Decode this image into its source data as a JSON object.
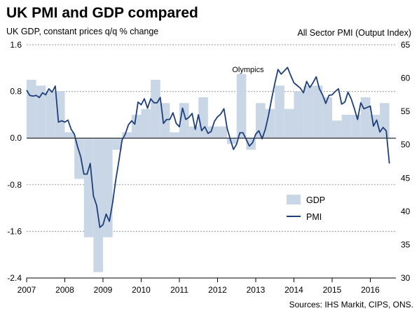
{
  "chart_data": {
    "type": "bar+line",
    "title": "UK PMI and GDP compared",
    "left_axis_label": "UK GDP, constant prices q/q % change",
    "right_axis_label": "All Sector PMI (Output Index)",
    "source": "Sources: IHS Markit, CIPS, ONS.",
    "annotation": "Olympics",
    "left_ylim": [
      -2.4,
      1.6
    ],
    "left_ticks": [
      "1.6",
      "0.8",
      "0.0",
      "-0.8",
      "-1.6",
      "-2.4"
    ],
    "right_ylim": [
      30,
      65
    ],
    "right_ticks": [
      "65",
      "60",
      "55",
      "50",
      "45",
      "40",
      "35",
      "30"
    ],
    "x_tick_labels": [
      "2007",
      "2008",
      "2009",
      "2010",
      "2011",
      "2012",
      "2013",
      "2014",
      "2015",
      "2016"
    ],
    "x_start_year": 2007,
    "x_end_year": 2016.67,
    "legend": {
      "gdp_label": "GDP",
      "pmi_label": "PMI"
    },
    "colors": {
      "gdp": "#c8d6e5",
      "pmi": "#1f3f7a",
      "grid": "#9a9a9a",
      "axis": "#000000"
    },
    "gdp": [
      {
        "quarter": "2007 Q1",
        "value": 1.0
      },
      {
        "quarter": "2007 Q2",
        "value": 0.9
      },
      {
        "quarter": "2007 Q3",
        "value": 0.8
      },
      {
        "quarter": "2007 Q4",
        "value": 0.8
      },
      {
        "quarter": "2008 Q1",
        "value": 0.1
      },
      {
        "quarter": "2008 Q2",
        "value": -0.7
      },
      {
        "quarter": "2008 Q3",
        "value": -1.7
      },
      {
        "quarter": "2008 Q4",
        "value": -2.3
      },
      {
        "quarter": "2009 Q1",
        "value": -1.7
      },
      {
        "quarter": "2009 Q2",
        "value": -0.2
      },
      {
        "quarter": "2009 Q3",
        "value": 0.1
      },
      {
        "quarter": "2009 Q4",
        "value": 0.4
      },
      {
        "quarter": "2010 Q1",
        "value": 0.5
      },
      {
        "quarter": "2010 Q2",
        "value": 1.0
      },
      {
        "quarter": "2010 Q3",
        "value": 0.6
      },
      {
        "quarter": "2010 Q4",
        "value": 0.1
      },
      {
        "quarter": "2011 Q1",
        "value": 0.6
      },
      {
        "quarter": "2011 Q2",
        "value": 0.2
      },
      {
        "quarter": "2011 Q3",
        "value": 0.7
      },
      {
        "quarter": "2011 Q4",
        "value": 0.2
      },
      {
        "quarter": "2012 Q1",
        "value": 0.2
      },
      {
        "quarter": "2012 Q2",
        "value": -0.1
      },
      {
        "quarter": "2012 Q3",
        "value": 1.1
      },
      {
        "quarter": "2012 Q4",
        "value": -0.2
      },
      {
        "quarter": "2013 Q1",
        "value": 0.6
      },
      {
        "quarter": "2013 Q2",
        "value": 0.5
      },
      {
        "quarter": "2013 Q3",
        "value": 0.9
      },
      {
        "quarter": "2013 Q4",
        "value": 0.5
      },
      {
        "quarter": "2014 Q1",
        "value": 0.8
      },
      {
        "quarter": "2014 Q2",
        "value": 0.9
      },
      {
        "quarter": "2014 Q3",
        "value": 0.9
      },
      {
        "quarter": "2014 Q4",
        "value": 0.7
      },
      {
        "quarter": "2015 Q1",
        "value": 0.3
      },
      {
        "quarter": "2015 Q2",
        "value": 0.4
      },
      {
        "quarter": "2015 Q3",
        "value": 0.4
      },
      {
        "quarter": "2015 Q4",
        "value": 0.7
      },
      {
        "quarter": "2016 Q1",
        "value": 0.4
      },
      {
        "quarter": "2016 Q2",
        "value": 0.6
      }
    ],
    "pmi": [
      {
        "date": "2007-01",
        "value": 58.2
      },
      {
        "date": "2007-02",
        "value": 57.4
      },
      {
        "date": "2007-03",
        "value": 57.3
      },
      {
        "date": "2007-04",
        "value": 57.4
      },
      {
        "date": "2007-05",
        "value": 57.1
      },
      {
        "date": "2007-06",
        "value": 57.8
      },
      {
        "date": "2007-07",
        "value": 57.5
      },
      {
        "date": "2007-08",
        "value": 58.4
      },
      {
        "date": "2007-09",
        "value": 57.9
      },
      {
        "date": "2007-10",
        "value": 58.8
      },
      {
        "date": "2007-11",
        "value": 53.4
      },
      {
        "date": "2007-12",
        "value": 53.6
      },
      {
        "date": "2008-01",
        "value": 53.4
      },
      {
        "date": "2008-02",
        "value": 53.7
      },
      {
        "date": "2008-03",
        "value": 52.3
      },
      {
        "date": "2008-04",
        "value": 51.6
      },
      {
        "date": "2008-05",
        "value": 49.7
      },
      {
        "date": "2008-06",
        "value": 48.2
      },
      {
        "date": "2008-07",
        "value": 45.6
      },
      {
        "date": "2008-08",
        "value": 45.6
      },
      {
        "date": "2008-09",
        "value": 47.2
      },
      {
        "date": "2008-10",
        "value": 42.3
      },
      {
        "date": "2008-11",
        "value": 40.9
      },
      {
        "date": "2008-12",
        "value": 37.6
      },
      {
        "date": "2009-01",
        "value": 38.0
      },
      {
        "date": "2009-02",
        "value": 39.6
      },
      {
        "date": "2009-03",
        "value": 38.5
      },
      {
        "date": "2009-04",
        "value": 41.2
      },
      {
        "date": "2009-05",
        "value": 44.7
      },
      {
        "date": "2009-06",
        "value": 47.6
      },
      {
        "date": "2009-07",
        "value": 50.7
      },
      {
        "date": "2009-08",
        "value": 51.6
      },
      {
        "date": "2009-09",
        "value": 53.0
      },
      {
        "date": "2009-10",
        "value": 53.6
      },
      {
        "date": "2009-11",
        "value": 53.1
      },
      {
        "date": "2009-12",
        "value": 56.4
      },
      {
        "date": "2010-01",
        "value": 56.0
      },
      {
        "date": "2010-02",
        "value": 56.9
      },
      {
        "date": "2010-03",
        "value": 55.5
      },
      {
        "date": "2010-04",
        "value": 56.9
      },
      {
        "date": "2010-05",
        "value": 56.3
      },
      {
        "date": "2010-06",
        "value": 56.3
      },
      {
        "date": "2010-07",
        "value": 57.1
      },
      {
        "date": "2010-08",
        "value": 53.2
      },
      {
        "date": "2010-09",
        "value": 53.8
      },
      {
        "date": "2010-10",
        "value": 53.8
      },
      {
        "date": "2010-11",
        "value": 54.8
      },
      {
        "date": "2010-12",
        "value": 53.2
      },
      {
        "date": "2011-01",
        "value": 52.7
      },
      {
        "date": "2011-02",
        "value": 55.5
      },
      {
        "date": "2011-03",
        "value": 53.8
      },
      {
        "date": "2011-04",
        "value": 54.1
      },
      {
        "date": "2011-05",
        "value": 54.7
      },
      {
        "date": "2011-06",
        "value": 52.3
      },
      {
        "date": "2011-07",
        "value": 54.5
      },
      {
        "date": "2011-08",
        "value": 52.1
      },
      {
        "date": "2011-09",
        "value": 52.7
      },
      {
        "date": "2011-10",
        "value": 51.7
      },
      {
        "date": "2011-11",
        "value": 52.0
      },
      {
        "date": "2011-12",
        "value": 53.5
      },
      {
        "date": "2012-01",
        "value": 54.2
      },
      {
        "date": "2012-02",
        "value": 54.6
      },
      {
        "date": "2012-03",
        "value": 55.4
      },
      {
        "date": "2012-04",
        "value": 52.5
      },
      {
        "date": "2012-05",
        "value": 50.8
      },
      {
        "date": "2012-06",
        "value": 49.3
      },
      {
        "date": "2012-07",
        "value": 50.1
      },
      {
        "date": "2012-08",
        "value": 51.8
      },
      {
        "date": "2012-09",
        "value": 51.8
      },
      {
        "date": "2012-10",
        "value": 50.8
      },
      {
        "date": "2012-11",
        "value": 49.8
      },
      {
        "date": "2012-12",
        "value": 50.3
      },
      {
        "date": "2013-01",
        "value": 51.6
      },
      {
        "date": "2013-02",
        "value": 52.1
      },
      {
        "date": "2013-03",
        "value": 50.9
      },
      {
        "date": "2013-04",
        "value": 52.3
      },
      {
        "date": "2013-05",
        "value": 54.4
      },
      {
        "date": "2013-06",
        "value": 56.9
      },
      {
        "date": "2013-07",
        "value": 59.2
      },
      {
        "date": "2013-08",
        "value": 61.3
      },
      {
        "date": "2013-09",
        "value": 60.6
      },
      {
        "date": "2013-10",
        "value": 61.1
      },
      {
        "date": "2013-11",
        "value": 61.6
      },
      {
        "date": "2013-12",
        "value": 60.4
      },
      {
        "date": "2014-01",
        "value": 59.3
      },
      {
        "date": "2014-02",
        "value": 58.9
      },
      {
        "date": "2014-03",
        "value": 58.5
      },
      {
        "date": "2014-04",
        "value": 57.8
      },
      {
        "date": "2014-05",
        "value": 59.5
      },
      {
        "date": "2014-06",
        "value": 58.6
      },
      {
        "date": "2014-07",
        "value": 59.3
      },
      {
        "date": "2014-08",
        "value": 60.2
      },
      {
        "date": "2014-09",
        "value": 58.4
      },
      {
        "date": "2014-10",
        "value": 57.5
      },
      {
        "date": "2014-11",
        "value": 56.2
      },
      {
        "date": "2014-12",
        "value": 57.4
      },
      {
        "date": "2015-01",
        "value": 57.5
      },
      {
        "date": "2015-02",
        "value": 58.0
      },
      {
        "date": "2015-03",
        "value": 58.4
      },
      {
        "date": "2015-04",
        "value": 56.1
      },
      {
        "date": "2015-05",
        "value": 56.4
      },
      {
        "date": "2015-06",
        "value": 57.9
      },
      {
        "date": "2015-07",
        "value": 56.9
      },
      {
        "date": "2015-08",
        "value": 55.4
      },
      {
        "date": "2015-09",
        "value": 53.8
      },
      {
        "date": "2015-10",
        "value": 56.3
      },
      {
        "date": "2015-11",
        "value": 55.4
      },
      {
        "date": "2015-12",
        "value": 55.6
      },
      {
        "date": "2016-01",
        "value": 55.8
      },
      {
        "date": "2016-02",
        "value": 52.8
      },
      {
        "date": "2016-03",
        "value": 53.7
      },
      {
        "date": "2016-04",
        "value": 51.9
      },
      {
        "date": "2016-05",
        "value": 52.6
      },
      {
        "date": "2016-06",
        "value": 52.1
      },
      {
        "date": "2016-07",
        "value": 47.2
      }
    ]
  }
}
